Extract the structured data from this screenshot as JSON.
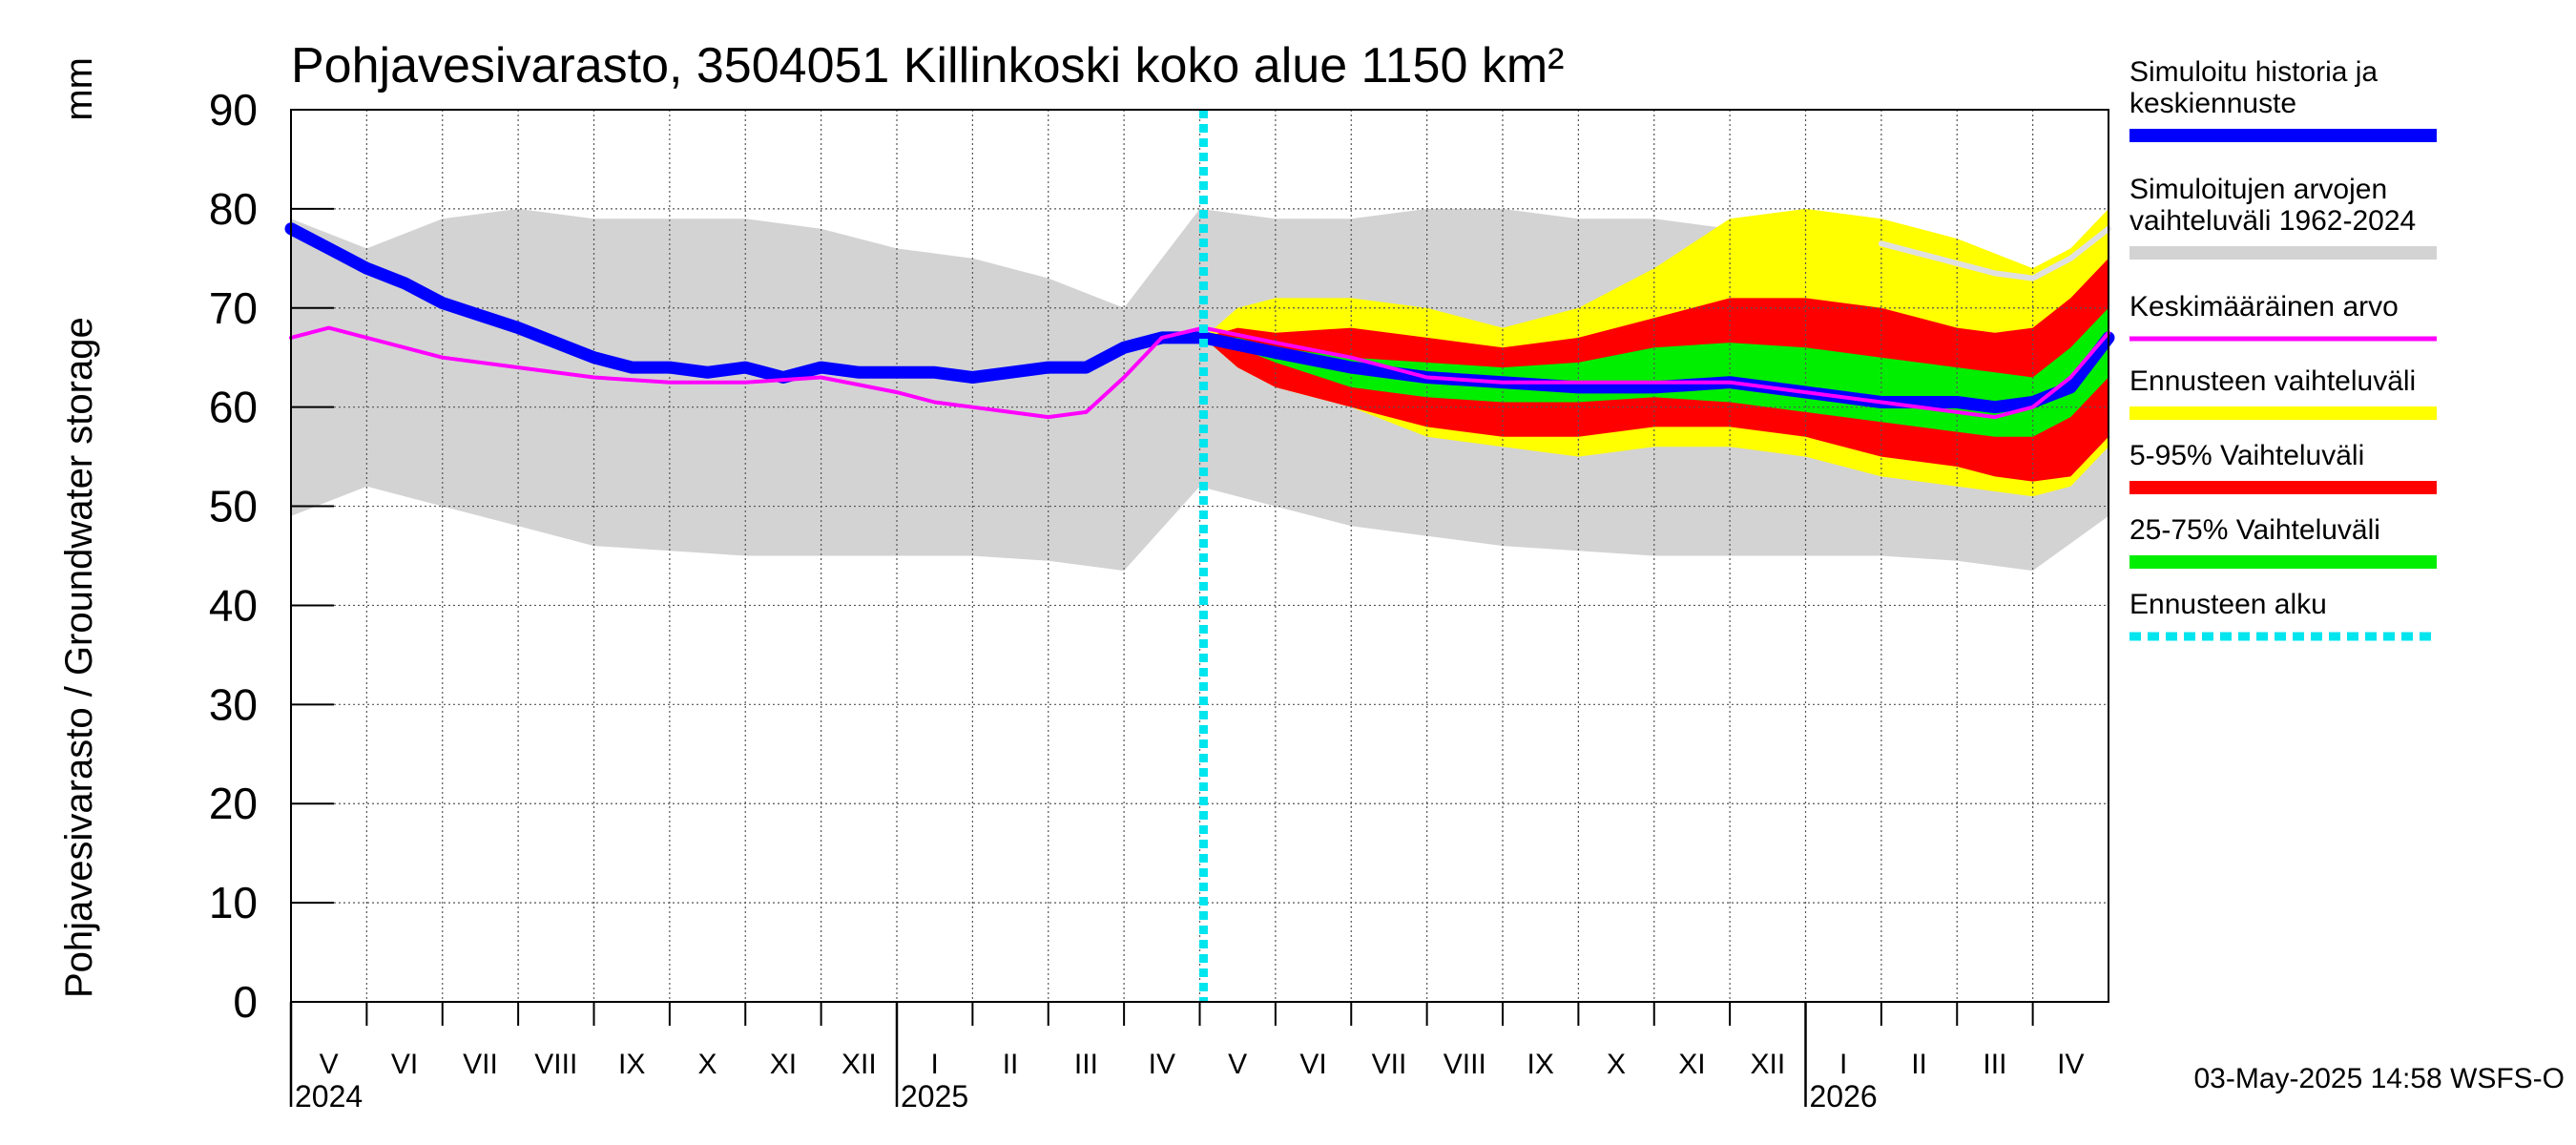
{
  "chart_data": {
    "type": "area",
    "title": "Pohjavesivarasto, 3504051 Killinkoski koko alue 1150 km²",
    "ylabel": "Pohjavesivarasto / Groundwater storage",
    "yunit": "mm",
    "ylim": [
      0,
      90
    ],
    "yticks": [
      0,
      10,
      20,
      30,
      40,
      50,
      60,
      70,
      80,
      90
    ],
    "x_range_months": [
      0,
      24
    ],
    "months": [
      {
        "label": "V",
        "pos": 0
      },
      {
        "label": "VI",
        "pos": 1
      },
      {
        "label": "VII",
        "pos": 2
      },
      {
        "label": "VIII",
        "pos": 3
      },
      {
        "label": "IX",
        "pos": 4
      },
      {
        "label": "X",
        "pos": 5
      },
      {
        "label": "XI",
        "pos": 6
      },
      {
        "label": "XII",
        "pos": 7
      },
      {
        "label": "I",
        "pos": 8
      },
      {
        "label": "II",
        "pos": 9
      },
      {
        "label": "III",
        "pos": 10
      },
      {
        "label": "IV",
        "pos": 11
      },
      {
        "label": "V",
        "pos": 12
      },
      {
        "label": "VI",
        "pos": 13
      },
      {
        "label": "VII",
        "pos": 14
      },
      {
        "label": "VIII",
        "pos": 15
      },
      {
        "label": "IX",
        "pos": 16
      },
      {
        "label": "X",
        "pos": 17
      },
      {
        "label": "XI",
        "pos": 18
      },
      {
        "label": "XII",
        "pos": 19
      },
      {
        "label": "I",
        "pos": 20
      },
      {
        "label": "II",
        "pos": 21
      },
      {
        "label": "III",
        "pos": 22
      },
      {
        "label": "IV",
        "pos": 23
      }
    ],
    "years": [
      {
        "label": "2024",
        "pos": 0
      },
      {
        "label": "2025",
        "pos": 8
      },
      {
        "label": "2026",
        "pos": 20
      }
    ],
    "forecast_start": 12.05,
    "series": [
      {
        "name": "Simuloitujen arvojen vaihteluväli 1962-2024",
        "color": "#d3d3d3",
        "kind": "band",
        "x": [
          0,
          1,
          2,
          3,
          4,
          5,
          6,
          7,
          8,
          9,
          10,
          11,
          12,
          13,
          14,
          15,
          16,
          17,
          18,
          19,
          20,
          21,
          22,
          23,
          24
        ],
        "lower": [
          49,
          52,
          50,
          48,
          46,
          45.5,
          45,
          45,
          45,
          45,
          44.5,
          43.5,
          52,
          50,
          48,
          47,
          46,
          45.5,
          45,
          45,
          45,
          45,
          44.5,
          43.5,
          49
        ],
        "upper": [
          79,
          76,
          79,
          80,
          79,
          79,
          79,
          78,
          76,
          75,
          73,
          70,
          80,
          79,
          79,
          80,
          80,
          79,
          79,
          78,
          76,
          75,
          73,
          70,
          79
        ]
      },
      {
        "name": "Ennusteen vaihteluväli",
        "color": "#ffff00",
        "kind": "band",
        "x": [
          12.05,
          12.5,
          13,
          14,
          15,
          16,
          17,
          18,
          19,
          20,
          21,
          22,
          22.5,
          23,
          23.5,
          24
        ],
        "lower": [
          67,
          64,
          62,
          60,
          57,
          56,
          55,
          56,
          56,
          55,
          53,
          52,
          51.5,
          51,
          52,
          56
        ],
        "upper": [
          67,
          70,
          71,
          71,
          70,
          68,
          70,
          74,
          79,
          80,
          79,
          77,
          75.5,
          74,
          76,
          80
        ]
      },
      {
        "name": "5-95% Vaihteluväli",
        "color": "#ff0000",
        "kind": "band",
        "x": [
          12.05,
          12.5,
          13,
          14,
          15,
          16,
          17,
          18,
          19,
          20,
          21,
          22,
          22.5,
          23,
          23.5,
          24
        ],
        "lower": [
          67,
          64,
          62,
          60,
          58,
          57,
          57,
          58,
          58,
          57,
          55,
          54,
          53,
          52.5,
          53,
          57
        ],
        "upper": [
          67,
          68,
          67.5,
          68,
          67,
          66,
          67,
          69,
          71,
          71,
          70,
          68,
          67.5,
          68,
          71,
          75
        ]
      },
      {
        "name": "25-75% Vaihteluväli",
        "color": "#00ee00",
        "kind": "band",
        "x": [
          12.05,
          12.5,
          13,
          14,
          15,
          16,
          17,
          18,
          19,
          20,
          21,
          22,
          22.5,
          23,
          23.5,
          24
        ],
        "lower": [
          67,
          66,
          64.5,
          62,
          61,
          60.5,
          60.5,
          61,
          60.5,
          59.5,
          58.5,
          57.5,
          57,
          57,
          59,
          63
        ],
        "upper": [
          67,
          67,
          66,
          65,
          64.5,
          64,
          64.5,
          66,
          66.5,
          66,
          65,
          64,
          63.5,
          63,
          66,
          70
        ]
      },
      {
        "name": "Simuloitu historia ja keskiennuste",
        "color": "#0000ff",
        "kind": "line",
        "x": [
          0,
          0.5,
          1,
          1.5,
          2,
          3,
          4,
          4.5,
          5,
          5.5,
          6,
          6.5,
          7,
          7.5,
          8,
          8.5,
          9,
          9.5,
          10,
          10.5,
          11,
          11.5,
          12.05,
          13,
          14,
          15,
          16,
          17,
          18,
          19,
          20,
          21,
          22,
          22.5,
          23,
          23.5,
          24
        ],
        "y": [
          78,
          76,
          74,
          72.5,
          70.5,
          68,
          65,
          64,
          64,
          63.5,
          64,
          63,
          64,
          63.5,
          63.5,
          63.5,
          63,
          63.5,
          64,
          64,
          66,
          67,
          67,
          65.5,
          64,
          63,
          62.5,
          62,
          62,
          62.5,
          61.5,
          60.5,
          60.5,
          60,
          60.5,
          62,
          67
        ]
      },
      {
        "name": "Keskimääräinen arvo",
        "color": "#ff00ff",
        "kind": "line",
        "x": [
          0,
          0.5,
          1,
          1.5,
          2,
          3,
          4,
          5,
          6,
          7,
          8,
          8.5,
          9,
          9.5,
          10,
          10.5,
          11,
          11.5,
          12.05,
          13,
          14,
          15,
          16,
          17,
          18,
          19,
          20,
          21,
          22,
          22.5,
          23,
          23.5,
          24
        ],
        "y": [
          67,
          68,
          67,
          66,
          65,
          64,
          63,
          62.5,
          62.5,
          63,
          61.5,
          60.5,
          60,
          59.5,
          59,
          59.5,
          63,
          67,
          68,
          66.5,
          65,
          63,
          62.5,
          62.5,
          62.5,
          62.5,
          61.5,
          60.5,
          59.5,
          59,
          60,
          63,
          67.5
        ]
      },
      {
        "name": "Simuloitujen arvojen maksimi",
        "color": "#e0e0e0",
        "kind": "line_thin",
        "x": [
          21,
          21.5,
          22,
          22.5,
          23,
          23.5,
          24
        ],
        "y": [
          76.5,
          75.5,
          74.5,
          73.5,
          73,
          75,
          78
        ]
      },
      {
        "name": "Ennusteen alku",
        "color": "#00e5ee",
        "kind": "vline"
      }
    ]
  },
  "legend": [
    {
      "label": "Simuloitu historia ja keskiennuste",
      "color": "#0000ff",
      "style": "solid",
      "width": 14
    },
    {
      "label": "Simuloitujen arvojen vaihteluväli 1962-2024",
      "color": "#d3d3d3",
      "style": "solid",
      "width": 14
    },
    {
      "label": "Keskimääräinen arvo",
      "color": "#ff00ff",
      "style": "solid",
      "width": 5
    },
    {
      "label": "Ennusteen vaihteluväli",
      "color": "#ffff00",
      "style": "solid",
      "width": 14
    },
    {
      "label": "5-95% Vaihteluväli",
      "color": "#ff0000",
      "style": "solid",
      "width": 14
    },
    {
      "label": "25-75% Vaihteluväli",
      "color": "#00ee00",
      "style": "solid",
      "width": 14
    },
    {
      "label": "Ennusteen alku",
      "color": "#00e5ee",
      "style": "dashed",
      "width": 9
    }
  ],
  "legend_lines": [
    [
      "Simuloitu historia ja",
      "keskiennuste"
    ],
    [
      "Simuloitujen arvojen",
      "vaihteluväli 1962-2024"
    ],
    [
      "Keskimääräinen arvo"
    ],
    [
      "Ennusteen vaihteluväli"
    ],
    [
      "5-95% Vaihteluväli"
    ],
    [
      "25-75% Vaihteluväli"
    ],
    [
      "Ennusteen alku"
    ]
  ],
  "footer": "03-May-2025 14:58 WSFS-O"
}
